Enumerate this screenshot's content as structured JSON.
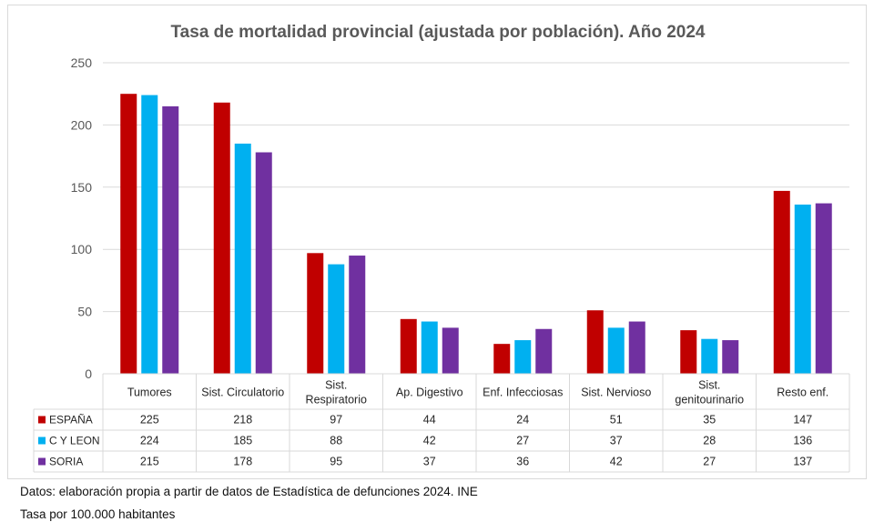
{
  "chart_data": {
    "type": "bar",
    "title": "Tasa de mortalidad provincial (ajustada por población). Año 2024",
    "categories": [
      [
        "Tumores"
      ],
      [
        "Sist. Circulatorio"
      ],
      [
        "Sist.",
        "Respiratorio"
      ],
      [
        "Ap. Digestivo"
      ],
      [
        "Enf. Infecciosas"
      ],
      [
        "Sist. Nervioso"
      ],
      [
        "Sist.",
        "genitourinario"
      ],
      [
        "Resto enf."
      ]
    ],
    "series": [
      {
        "name": "ESPAÑA",
        "color": "#c00000",
        "values": [
          225,
          218,
          97,
          44,
          24,
          51,
          35,
          147
        ]
      },
      {
        "name": "C Y LEON",
        "color": "#00b0f0",
        "values": [
          224,
          185,
          88,
          42,
          27,
          37,
          28,
          136
        ]
      },
      {
        "name": "SORIA",
        "color": "#7030a0",
        "values": [
          215,
          178,
          95,
          37,
          36,
          42,
          27,
          137
        ]
      }
    ],
    "ylim": [
      0,
      250
    ],
    "yticks": [
      0,
      50,
      100,
      150,
      200,
      250
    ],
    "grid": true,
    "legend": "data-table"
  },
  "footnotes": {
    "source": "Datos: elaboración propia a partir de datos de Estadística de defunciones 2024. INE",
    "unit": "Tasa por 100.000 habitantes"
  }
}
